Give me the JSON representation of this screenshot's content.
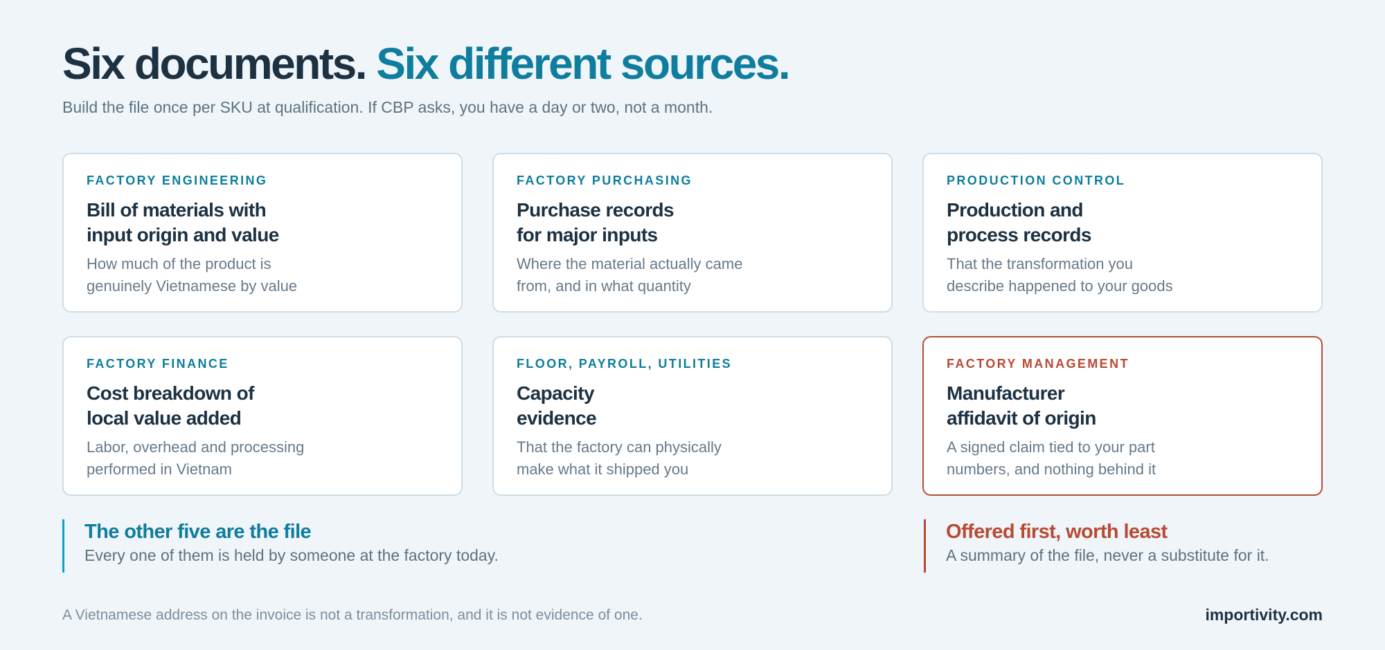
{
  "header": {
    "title_main": "Six documents.",
    "title_accent": "Six different sources.",
    "subtitle": "Build the file once per SKU at qualification. If CBP asks, you have a day or two, not a month."
  },
  "cards": [
    {
      "tag": "FACTORY ENGINEERING",
      "title": "Bill of materials with\ninput origin and value",
      "desc": "How much of the product is\ngenuinely Vietnamese by value"
    },
    {
      "tag": "FACTORY PURCHASING",
      "title": "Purchase records\nfor major inputs",
      "desc": "Where the material actually came\nfrom, and in what quantity"
    },
    {
      "tag": "PRODUCTION CONTROL",
      "title": "Production and\nprocess records",
      "desc": "That the transformation you\ndescribe happened to your goods"
    },
    {
      "tag": "FACTORY FINANCE",
      "title": "Cost breakdown of\nlocal value added",
      "desc": "Labor, overhead and processing\nperformed in Vietnam"
    },
    {
      "tag": "FLOOR, PAYROLL, UTILITIES",
      "title": "Capacity\nevidence",
      "desc": "That the factory can physically\nmake what it shipped you"
    },
    {
      "tag": "FACTORY MANAGEMENT",
      "title": "Manufacturer\naffidavit of origin",
      "desc": "A signed claim tied to your part\nnumbers, and nothing behind it"
    }
  ],
  "callouts": {
    "left": {
      "title": "The other five are the file",
      "text": "Every one of them is held by someone at the factory today."
    },
    "right": {
      "title": "Offered first, worth least",
      "text": "A summary of the file, never a substitute for it."
    }
  },
  "footer": {
    "note": "A Vietnamese address on the invoice is not a transformation, and it is not evidence of one.",
    "brand": "importivity.com"
  },
  "colors": {
    "background": "#f0f5f9",
    "heading": "#1c3142",
    "accent": "#0e7d9e",
    "callout_bar": "#0e9fcb",
    "warning": "#b84a33",
    "muted": "#5d7280",
    "card_border": "#cfdce5"
  }
}
